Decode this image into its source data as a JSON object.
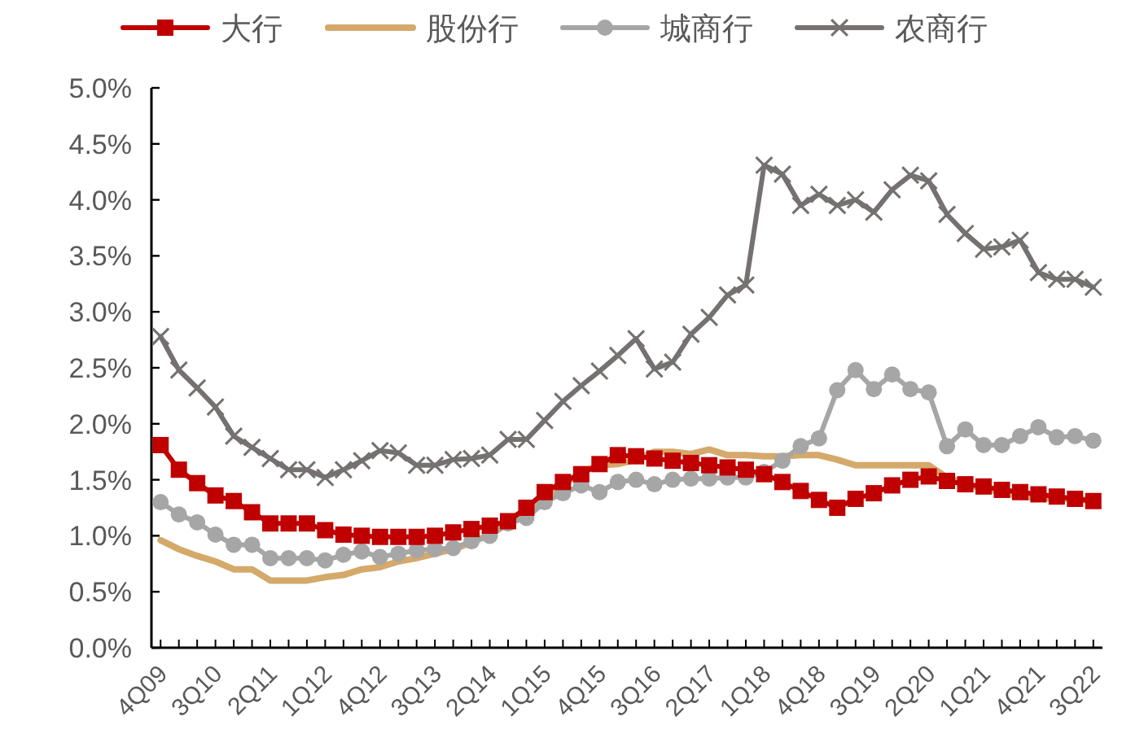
{
  "chart_data": {
    "type": "line",
    "categories": [
      "4Q09",
      null,
      null,
      "3Q10",
      null,
      null,
      "2Q11",
      null,
      null,
      "1Q12",
      null,
      null,
      "4Q12",
      null,
      null,
      "3Q13",
      null,
      null,
      "2Q14",
      null,
      null,
      "1Q15",
      null,
      null,
      "4Q15",
      null,
      null,
      "3Q16",
      null,
      null,
      "2Q17",
      null,
      null,
      "1Q18",
      null,
      null,
      "4Q18",
      null,
      null,
      "3Q19",
      null,
      null,
      "2Q20",
      null,
      null,
      "1Q21",
      null,
      null,
      "4Q21",
      null,
      null,
      "3Q22"
    ],
    "series": [
      {
        "name": "大行",
        "color": "#c00000",
        "marker": "square",
        "values": [
          1.81,
          1.59,
          1.47,
          1.36,
          1.31,
          1.21,
          1.11,
          1.11,
          1.11,
          1.05,
          1.01,
          1.0,
          0.99,
          0.99,
          0.99,
          1.0,
          1.03,
          1.06,
          1.09,
          1.13,
          1.25,
          1.39,
          1.48,
          1.55,
          1.64,
          1.72,
          1.71,
          1.69,
          1.67,
          1.65,
          1.63,
          1.61,
          1.59,
          1.55,
          1.48,
          1.4,
          1.32,
          1.25,
          1.33,
          1.38,
          1.45,
          1.5,
          1.53,
          1.49,
          1.46,
          1.44,
          1.41,
          1.39,
          1.37,
          1.35,
          1.33,
          1.31
        ]
      },
      {
        "name": "股份行",
        "color": "#d4a96a",
        "marker": "none",
        "values": [
          0.96,
          0.88,
          0.82,
          0.77,
          0.7,
          0.7,
          0.6,
          0.6,
          0.6,
          0.63,
          0.65,
          0.7,
          0.72,
          0.77,
          0.8,
          0.84,
          0.88,
          0.94,
          1.01,
          1.11,
          1.18,
          1.33,
          1.45,
          1.57,
          1.63,
          1.64,
          1.68,
          1.75,
          1.75,
          1.73,
          1.77,
          1.72,
          1.72,
          1.71,
          1.71,
          1.72,
          1.72,
          1.68,
          1.63,
          1.63,
          1.63,
          1.63,
          1.63,
          1.52,
          1.46,
          1.42,
          1.39,
          1.35,
          1.34,
          1.33,
          1.33,
          1.31
        ]
      },
      {
        "name": "城商行",
        "color": "#a6a6a6",
        "marker": "circle",
        "values": [
          1.3,
          1.19,
          1.12,
          1.01,
          0.92,
          0.92,
          0.8,
          0.8,
          0.8,
          0.78,
          0.83,
          0.86,
          0.81,
          0.84,
          0.87,
          0.88,
          0.89,
          0.95,
          1.0,
          1.11,
          1.16,
          1.3,
          1.38,
          1.45,
          1.39,
          1.48,
          1.5,
          1.46,
          1.5,
          1.51,
          1.51,
          1.52,
          1.52,
          1.57,
          1.67,
          1.8,
          1.87,
          2.3,
          2.48,
          2.31,
          2.44,
          2.31,
          2.28,
          1.8,
          1.95,
          1.81,
          1.81,
          1.89,
          1.97,
          1.88,
          1.89,
          1.85
        ]
      },
      {
        "name": "农商行",
        "color": "#767171",
        "marker": "cross",
        "values": [
          2.78,
          2.48,
          2.32,
          2.15,
          1.89,
          1.79,
          1.69,
          1.59,
          1.59,
          1.52,
          1.59,
          1.67,
          1.76,
          1.74,
          1.63,
          1.63,
          1.68,
          1.69,
          1.72,
          1.86,
          1.86,
          2.03,
          2.2,
          2.34,
          2.47,
          2.61,
          2.76,
          2.49,
          2.55,
          2.8,
          2.95,
          3.15,
          3.24,
          4.31,
          4.23,
          3.95,
          4.05,
          3.95,
          4.0,
          3.89,
          4.09,
          4.22,
          4.17,
          3.87,
          3.7,
          3.56,
          3.58,
          3.64,
          3.35,
          3.29,
          3.29,
          3.22
        ]
      }
    ],
    "ylim": [
      0,
      5
    ],
    "yticks": [
      {
        "value": 0,
        "label": "0.0%"
      },
      {
        "value": 0.5,
        "label": "0.5%"
      },
      {
        "value": 1,
        "label": "1.0%"
      },
      {
        "value": 1.5,
        "label": "1.5%"
      },
      {
        "value": 2,
        "label": "2.0%"
      },
      {
        "value": 2.5,
        "label": "2.5%"
      },
      {
        "value": 3,
        "label": "3.0%"
      },
      {
        "value": 3.5,
        "label": "3.5%"
      },
      {
        "value": 4,
        "label": "4.0%"
      },
      {
        "value": 4.5,
        "label": "4.5%"
      },
      {
        "value": 5,
        "label": "5.0%"
      }
    ],
    "legend": "top",
    "grid": false,
    "line_style": "solid"
  }
}
